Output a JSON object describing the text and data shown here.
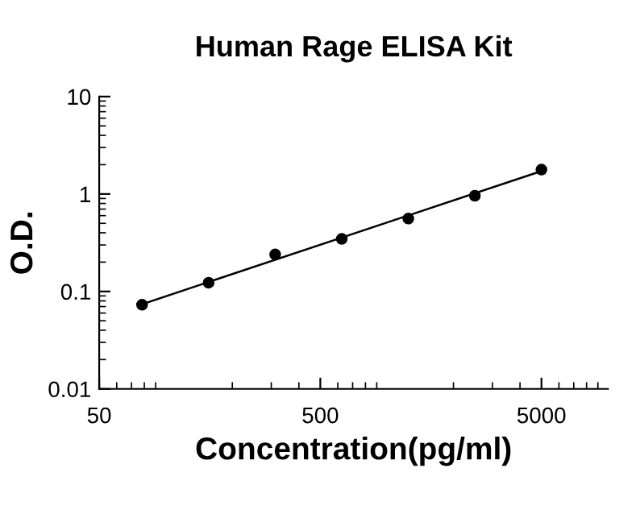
{
  "chart_data": {
    "type": "scatter",
    "title": "Human Rage ELISA Kit",
    "xlabel": "Concentration(pg/ml)",
    "ylabel": "O.D.",
    "log": "xy",
    "xlim": [
      50,
      10000
    ],
    "ylim": [
      0.01,
      10
    ],
    "xticks": [
      50,
      500,
      5000
    ],
    "yticks": [
      0.01,
      0.1,
      1,
      10
    ],
    "grid": false,
    "legend": false,
    "series": [
      {
        "color": "#000000",
        "marker": "circle",
        "x": [
          78.125,
          156.25,
          312.5,
          625,
          1250,
          2500,
          5000
        ],
        "values": [
          0.073,
          0.123,
          0.24,
          0.346,
          0.56,
          0.96,
          1.78
        ]
      },
      {
        "type": "line",
        "color": "#000000",
        "line_style": "solid",
        "x": [
          78.125,
          5000
        ],
        "values": [
          0.074,
          1.72
        ]
      }
    ]
  }
}
